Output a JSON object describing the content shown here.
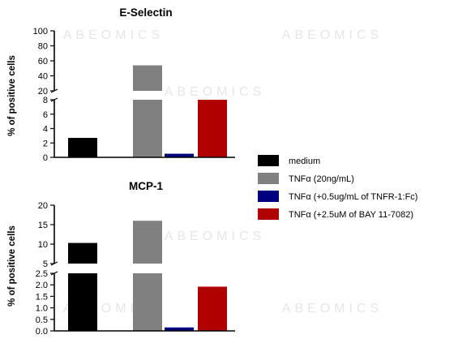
{
  "watermark": "ABEOMICS",
  "legend": {
    "entries": [
      {
        "label": "medium",
        "color": "#000000"
      },
      {
        "label": "TNFα (20ng/mL)",
        "color": "#808080"
      },
      {
        "label": "TNFα (+0.5ug/mL of TNFR-1:Fc)",
        "color": "#00007f"
      },
      {
        "label": "TNFα (+2.5uM of BAY 11-7082)",
        "color": "#b10000"
      }
    ]
  },
  "chart_data": [
    {
      "type": "bar",
      "title": "E-Selectin",
      "ylabel": "% of positive cells",
      "xlabel": "",
      "categories": [
        "medium",
        "TNFα (20ng/mL)",
        "TNFα (+0.5ug/mL of TNFR-1:Fc)",
        "TNFα (+2.5uM of BAY 11-7082)"
      ],
      "values": [
        2.7,
        54,
        0.5,
        8.0
      ],
      "colors": [
        "#000000",
        "#808080",
        "#00007f",
        "#b10000"
      ],
      "broken_axis": true,
      "lower_segment": {
        "ylim": [
          0,
          8
        ],
        "ticks": [
          0,
          2,
          4,
          6,
          8
        ]
      },
      "upper_segment": {
        "ylim": [
          20,
          100
        ],
        "ticks": [
          20,
          40,
          60,
          80,
          100
        ]
      },
      "grid": false
    },
    {
      "type": "bar",
      "title": "MCP-1",
      "ylabel": "% of positive cells",
      "xlabel": "",
      "categories": [
        "medium",
        "TNFα (20ng/mL)",
        "TNFα (+0.5ug/mL of TNFR-1:Fc)",
        "TNFα (+2.5uM of BAY 11-7082)"
      ],
      "values": [
        10.3,
        16.0,
        0.15,
        1.92
      ],
      "colors": [
        "#000000",
        "#808080",
        "#00007f",
        "#b10000"
      ],
      "broken_axis": true,
      "lower_segment": {
        "ylim": [
          0,
          2.5
        ],
        "ticks": [
          "0.0",
          "0.5",
          "1.0",
          "1.5",
          "2.0",
          "2.5"
        ]
      },
      "upper_segment": {
        "ylim": [
          5,
          20
        ],
        "ticks": [
          5,
          10,
          15,
          20
        ]
      },
      "grid": false
    }
  ]
}
